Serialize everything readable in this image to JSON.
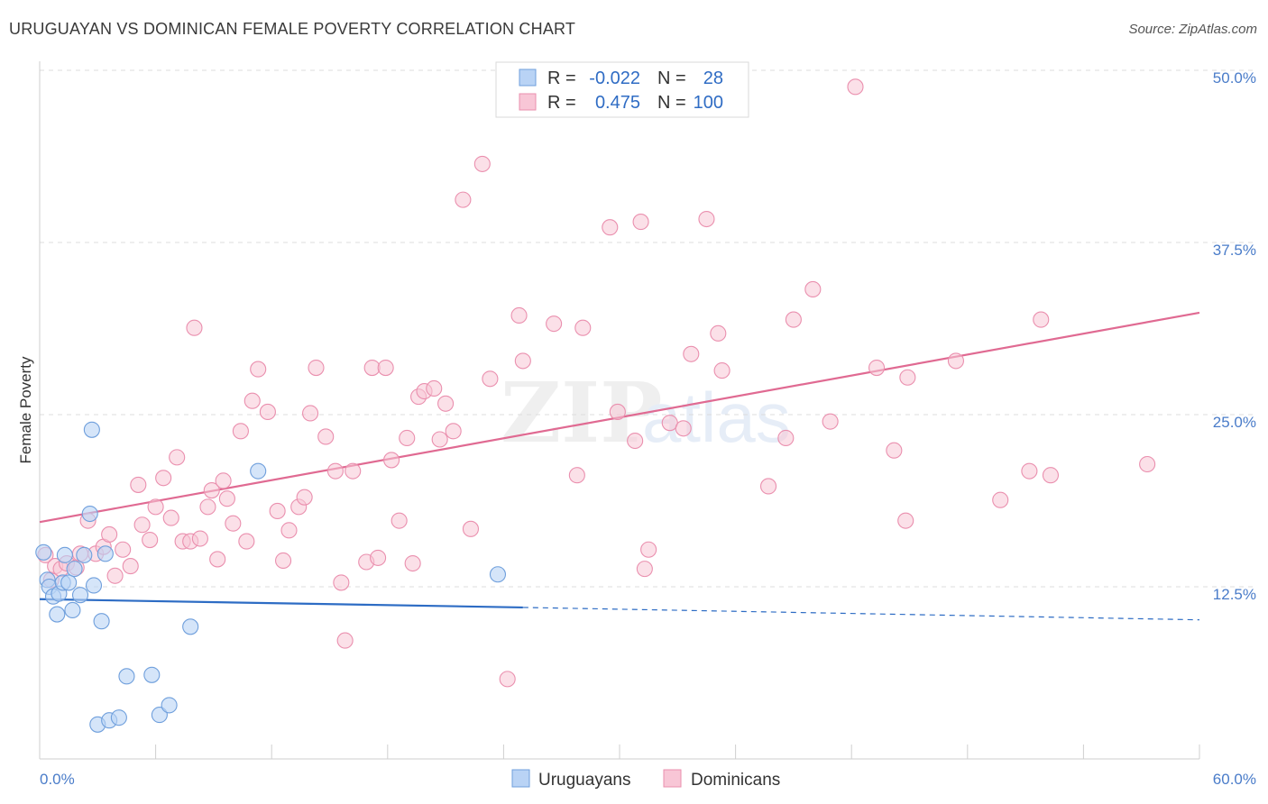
{
  "header": {
    "title": "URUGUAYAN VS DOMINICAN FEMALE POVERTY CORRELATION CHART",
    "source": "Source: ZipAtlas.com"
  },
  "watermark": {
    "zip": "ZIP",
    "atlas": "atlas"
  },
  "colors": {
    "uruguayan_fill": "#b9d3f5",
    "uruguayan_stroke": "#6f9fdc",
    "uruguayan_line": "#2d6cc4",
    "dominican_fill": "#f8c6d6",
    "dominican_stroke": "#ea8fae",
    "dominican_line": "#e06a92",
    "tick_text": "#4a7cc9"
  },
  "legend": {
    "rows": [
      {
        "r_label": "R =",
        "r_value": "-0.022",
        "n_label": "N =",
        "n_value": "28"
      },
      {
        "r_label": "R =",
        "r_value": "0.475",
        "n_label": "N =",
        "n_value": "100"
      }
    ]
  },
  "bottom_legend": {
    "uruguayans": "Uruguayans",
    "dominicans": "Dominicans"
  },
  "chart_data": {
    "type": "scatter",
    "title": "URUGUAYAN VS DOMINICAN FEMALE POVERTY CORRELATION CHART",
    "xlabel": "",
    "ylabel": "Female Poverty",
    "xlim": [
      0,
      60
    ],
    "ylim": [
      0,
      50
    ],
    "x_tick_labels": [
      "0.0%",
      "60.0%"
    ],
    "y_ticks": [
      12.5,
      25.0,
      37.5,
      50.0
    ],
    "y_tick_labels": [
      "12.5%",
      "25.0%",
      "37.5%",
      "50.0%"
    ],
    "grid": true,
    "legend_position": "top-center",
    "series": [
      {
        "name": "Uruguayans",
        "r": -0.022,
        "n": 28,
        "trend": {
          "x0": 0,
          "y0": 11.6,
          "x1": 25,
          "y1": 11.0,
          "dashed_to_x": 60,
          "dashed_to_y": 10.1
        },
        "points": [
          [
            0.2,
            15.0
          ],
          [
            0.4,
            13.0
          ],
          [
            0.5,
            12.5
          ],
          [
            0.7,
            11.8
          ],
          [
            0.9,
            10.5
          ],
          [
            1.0,
            12.0
          ],
          [
            1.2,
            12.8
          ],
          [
            1.3,
            14.8
          ],
          [
            1.5,
            12.8
          ],
          [
            1.7,
            10.8
          ],
          [
            1.8,
            13.8
          ],
          [
            2.1,
            11.9
          ],
          [
            2.3,
            14.8
          ],
          [
            2.6,
            17.8
          ],
          [
            2.7,
            23.9
          ],
          [
            2.8,
            12.6
          ],
          [
            3.2,
            10.0
          ],
          [
            3.4,
            14.9
          ],
          [
            3.0,
            2.5
          ],
          [
            3.6,
            2.8
          ],
          [
            4.1,
            3.0
          ],
          [
            4.5,
            6.0
          ],
          [
            5.8,
            6.1
          ],
          [
            6.2,
            3.2
          ],
          [
            6.7,
            3.9
          ],
          [
            7.8,
            9.6
          ],
          [
            11.3,
            20.9
          ],
          [
            23.7,
            13.4
          ]
        ]
      },
      {
        "name": "Dominicans",
        "r": 0.475,
        "n": 100,
        "trend": {
          "x0": 0,
          "y0": 17.2,
          "x1": 60,
          "y1": 32.4
        },
        "points": [
          [
            0.3,
            14.8
          ],
          [
            0.6,
            13.0
          ],
          [
            0.8,
            14.0
          ],
          [
            1.1,
            13.8
          ],
          [
            1.4,
            14.2
          ],
          [
            1.9,
            13.9
          ],
          [
            2.1,
            14.9
          ],
          [
            2.5,
            17.3
          ],
          [
            2.9,
            14.9
          ],
          [
            3.3,
            15.4
          ],
          [
            3.6,
            16.3
          ],
          [
            3.9,
            13.3
          ],
          [
            4.3,
            15.2
          ],
          [
            4.7,
            14.0
          ],
          [
            5.1,
            19.9
          ],
          [
            5.3,
            17.0
          ],
          [
            5.7,
            15.9
          ],
          [
            6.0,
            18.3
          ],
          [
            6.4,
            20.4
          ],
          [
            6.8,
            17.5
          ],
          [
            7.1,
            21.9
          ],
          [
            7.4,
            15.8
          ],
          [
            7.8,
            15.8
          ],
          [
            8.0,
            31.3
          ],
          [
            8.3,
            16.0
          ],
          [
            8.7,
            18.3
          ],
          [
            8.9,
            19.5
          ],
          [
            9.2,
            14.5
          ],
          [
            9.5,
            20.2
          ],
          [
            9.7,
            18.9
          ],
          [
            10.0,
            17.1
          ],
          [
            10.4,
            23.8
          ],
          [
            10.7,
            15.8
          ],
          [
            11.0,
            26.0
          ],
          [
            11.3,
            28.3
          ],
          [
            11.8,
            25.2
          ],
          [
            12.3,
            18.0
          ],
          [
            12.6,
            14.4
          ],
          [
            12.9,
            16.6
          ],
          [
            13.4,
            18.3
          ],
          [
            13.7,
            19.0
          ],
          [
            14.0,
            25.1
          ],
          [
            14.3,
            28.4
          ],
          [
            14.8,
            23.4
          ],
          [
            15.3,
            20.9
          ],
          [
            15.6,
            12.8
          ],
          [
            15.8,
            8.6
          ],
          [
            16.2,
            20.9
          ],
          [
            16.9,
            14.3
          ],
          [
            17.2,
            28.4
          ],
          [
            17.5,
            14.6
          ],
          [
            17.9,
            28.4
          ],
          [
            18.2,
            21.7
          ],
          [
            18.6,
            17.3
          ],
          [
            19.0,
            23.3
          ],
          [
            19.3,
            14.2
          ],
          [
            19.6,
            26.3
          ],
          [
            19.9,
            26.7
          ],
          [
            20.4,
            26.9
          ],
          [
            20.7,
            23.2
          ],
          [
            21.0,
            25.8
          ],
          [
            21.4,
            23.8
          ],
          [
            22.3,
            16.7
          ],
          [
            23.3,
            27.6
          ],
          [
            22.9,
            43.2
          ],
          [
            21.9,
            40.6
          ],
          [
            24.2,
            5.8
          ],
          [
            24.8,
            32.2
          ],
          [
            25.0,
            28.9
          ],
          [
            26.6,
            31.6
          ],
          [
            27.8,
            20.6
          ],
          [
            28.1,
            31.3
          ],
          [
            29.5,
            38.6
          ],
          [
            29.9,
            25.2
          ],
          [
            30.8,
            23.1
          ],
          [
            31.1,
            39.0
          ],
          [
            31.3,
            13.8
          ],
          [
            31.5,
            15.2
          ],
          [
            32.6,
            24.4
          ],
          [
            33.3,
            24.0
          ],
          [
            33.7,
            29.4
          ],
          [
            34.5,
            39.2
          ],
          [
            35.1,
            30.9
          ],
          [
            35.3,
            28.2
          ],
          [
            37.7,
            19.8
          ],
          [
            38.6,
            23.3
          ],
          [
            39.0,
            31.9
          ],
          [
            40.0,
            34.1
          ],
          [
            40.9,
            24.5
          ],
          [
            42.2,
            48.8
          ],
          [
            43.3,
            28.4
          ],
          [
            44.2,
            22.4
          ],
          [
            44.8,
            17.3
          ],
          [
            44.9,
            27.7
          ],
          [
            47.4,
            28.9
          ],
          [
            49.7,
            18.8
          ],
          [
            51.2,
            20.9
          ],
          [
            51.8,
            31.9
          ],
          [
            52.3,
            20.6
          ],
          [
            57.3,
            21.4
          ]
        ]
      }
    ]
  }
}
